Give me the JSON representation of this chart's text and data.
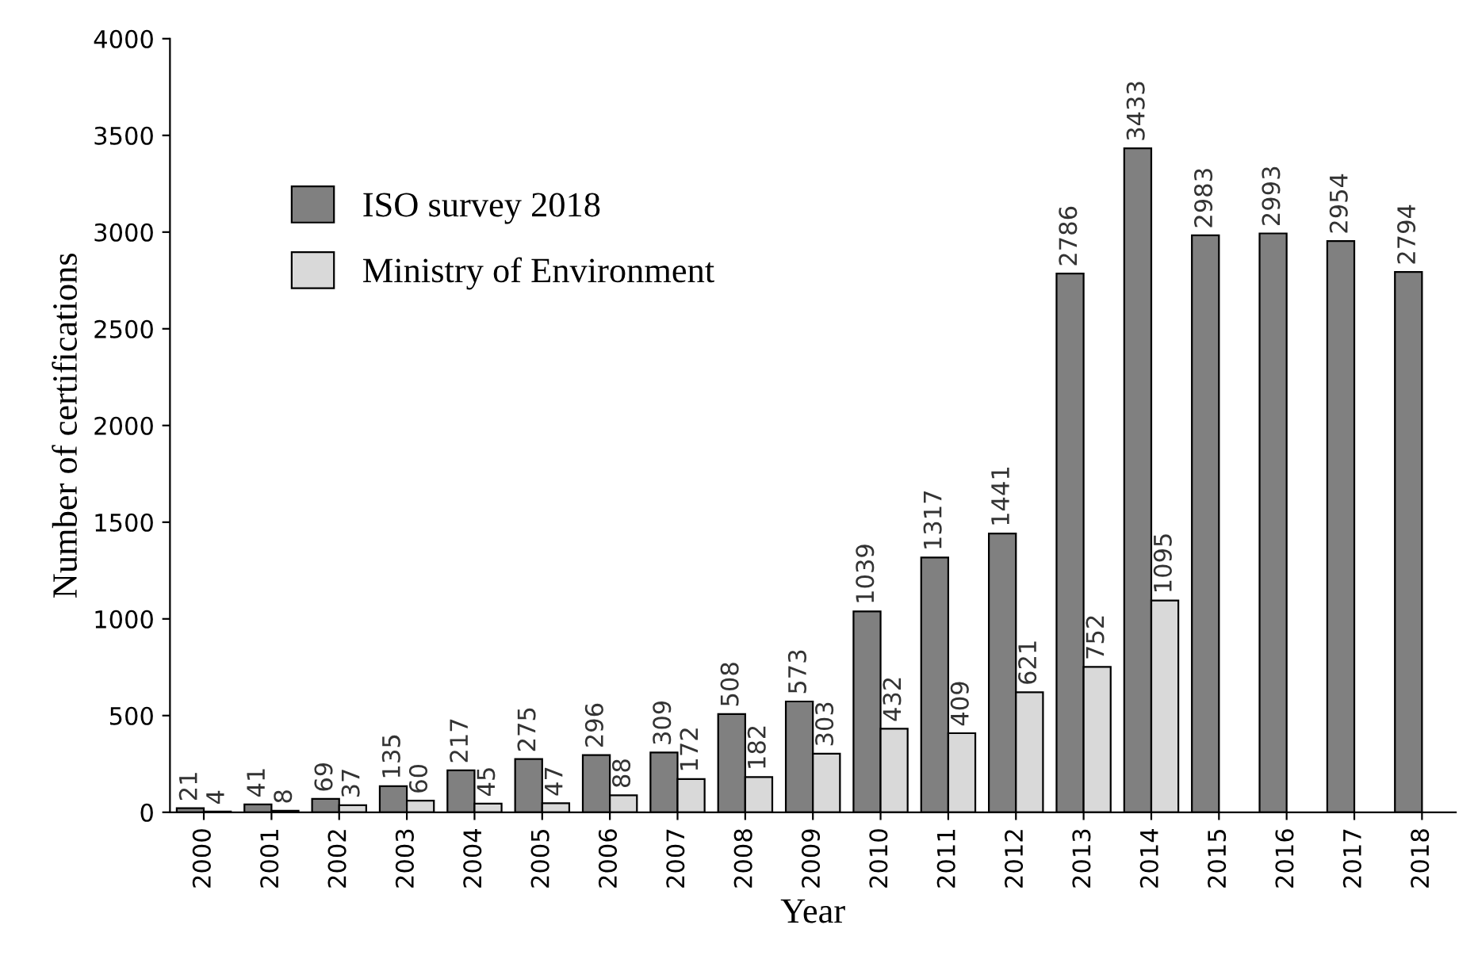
{
  "chart_data": {
    "type": "bar",
    "xlabel": "Year",
    "ylabel": "Number of certifications",
    "categories": [
      "2000",
      "2001",
      "2002",
      "2003",
      "2004",
      "2005",
      "2006",
      "2007",
      "2008",
      "2009",
      "2010",
      "2011",
      "2012",
      "2013",
      "2014",
      "2015",
      "2016",
      "2017",
      "2018"
    ],
    "series": [
      {
        "name": "ISO survey 2018",
        "color": "#808080",
        "values": [
          21,
          41,
          69,
          135,
          217,
          275,
          296,
          309,
          508,
          573,
          1039,
          1317,
          1441,
          2786,
          3433,
          2983,
          2993,
          2954,
          2794
        ]
      },
      {
        "name": "Ministry of Environment",
        "color": "#d9d9d9",
        "values": [
          4,
          8,
          37,
          60,
          45,
          47,
          88,
          172,
          182,
          303,
          432,
          409,
          621,
          752,
          1095,
          null,
          null,
          null,
          null
        ]
      }
    ],
    "ylim": [
      0,
      4000
    ],
    "yticks": [
      0,
      500,
      1000,
      1500,
      2000,
      2500,
      3000,
      3500,
      4000
    ],
    "data_labels": true,
    "grid": false,
    "legend": "top left"
  }
}
